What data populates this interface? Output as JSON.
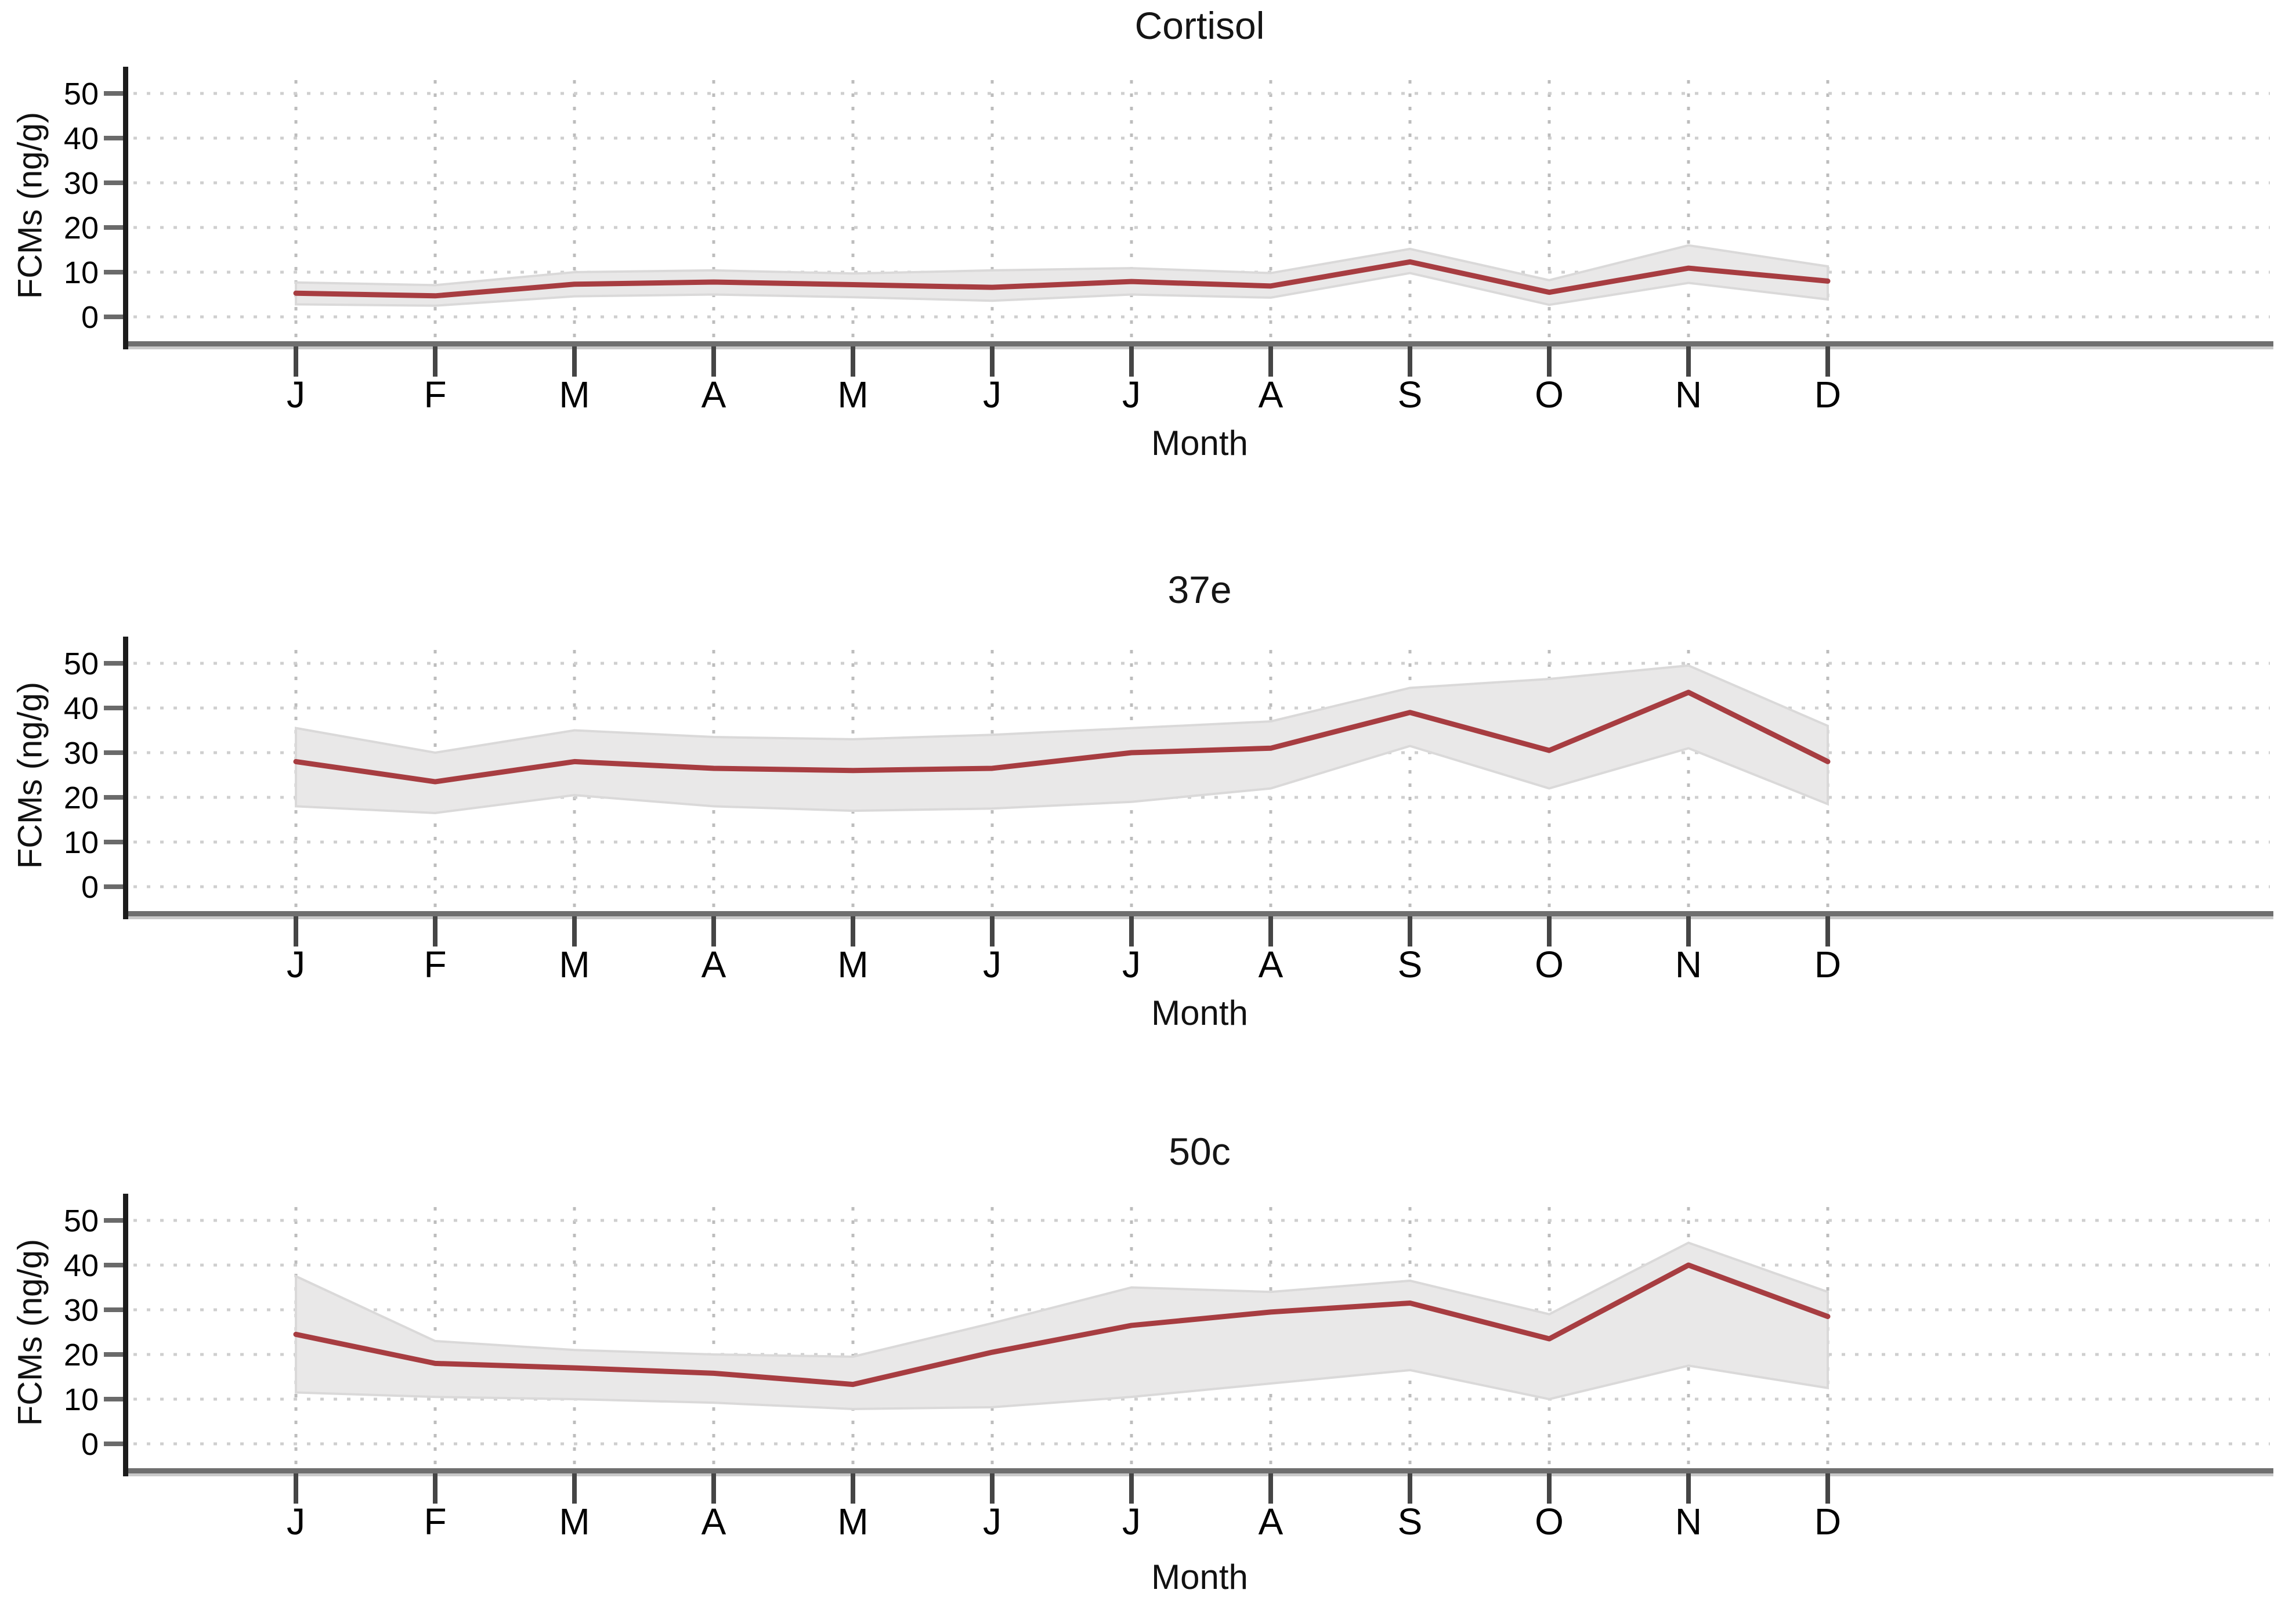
{
  "figure": {
    "background": "#ffffff",
    "text_color": "#111111",
    "panel_count": 3
  },
  "chart_data": [
    {
      "type": "line",
      "title": "Cortisol",
      "xlabel": "Month",
      "ylabel": "FCMs (ng/g)",
      "categories": [
        "J",
        "F",
        "M",
        "A",
        "M",
        "J",
        "J",
        "A",
        "S",
        "O",
        "N",
        "D"
      ],
      "yticks": [
        0,
        10,
        20,
        30,
        40,
        50
      ],
      "ylim": [
        0,
        55
      ],
      "grid": "dotted",
      "legend": "none",
      "series": [
        {
          "name": "mean",
          "values": [
            5.3,
            4.7,
            7.3,
            7.8,
            7.2,
            6.6,
            7.9,
            6.9,
            12.3,
            5.5,
            10.9,
            8.0
          ]
        },
        {
          "name": "ci_lower",
          "values": [
            2.8,
            2.5,
            4.6,
            5.0,
            4.4,
            3.6,
            5.0,
            4.3,
            9.8,
            2.7,
            7.6,
            3.9
          ]
        },
        {
          "name": "ci_upper",
          "values": [
            7.7,
            7.1,
            10.0,
            10.4,
            9.7,
            10.4,
            10.9,
            9.8,
            15.2,
            8.2,
            16.0,
            11.3
          ]
        }
      ],
      "line_color": "#a73d41",
      "band_color": "#e9e8e8"
    },
    {
      "type": "line",
      "title": "37e",
      "xlabel": "Month",
      "ylabel": "FCMs (ng/g)",
      "categories": [
        "J",
        "F",
        "M",
        "A",
        "M",
        "J",
        "J",
        "A",
        "S",
        "O",
        "N",
        "D"
      ],
      "yticks": [
        0,
        10,
        20,
        30,
        40,
        50
      ],
      "ylim": [
        0,
        55
      ],
      "grid": "dotted",
      "legend": "none",
      "series": [
        {
          "name": "mean",
          "values": [
            28,
            23.5,
            28,
            26.5,
            26,
            26.5,
            30,
            31,
            39,
            30.5,
            43.5,
            28
          ]
        },
        {
          "name": "ci_lower",
          "values": [
            18,
            16.5,
            20.5,
            18,
            17,
            17.5,
            19,
            22,
            31.5,
            22,
            31,
            18.5
          ]
        },
        {
          "name": "ci_upper",
          "values": [
            35.5,
            30,
            35,
            33.5,
            33,
            34,
            35.5,
            37,
            44.5,
            46.5,
            49.5,
            36
          ]
        }
      ],
      "line_color": "#a73d41",
      "band_color": "#e9e8e8"
    },
    {
      "type": "line",
      "title": "50c",
      "xlabel": "Month",
      "ylabel": "FCMs (ng/g)",
      "categories": [
        "J",
        "F",
        "M",
        "A",
        "M",
        "J",
        "J",
        "A",
        "S",
        "O",
        "N",
        "D"
      ],
      "yticks": [
        0,
        10,
        20,
        30,
        40,
        50
      ],
      "ylim": [
        0,
        55
      ],
      "grid": "dotted",
      "legend": "none",
      "series": [
        {
          "name": "mean",
          "values": [
            24.5,
            18,
            17,
            15.8,
            13.3,
            20.5,
            26.5,
            29.5,
            31.5,
            23.5,
            40,
            28.5
          ]
        },
        {
          "name": "ci_lower",
          "values": [
            11.5,
            10.5,
            10,
            9.2,
            7.8,
            8.2,
            10.5,
            13.5,
            16.5,
            10,
            17.5,
            12.5
          ]
        },
        {
          "name": "ci_upper",
          "values": [
            37.5,
            23,
            21,
            20,
            19.5,
            27,
            35,
            34,
            36.5,
            29,
            45,
            34
          ]
        }
      ],
      "line_color": "#a73d41",
      "band_color": "#e9e8e8"
    }
  ]
}
